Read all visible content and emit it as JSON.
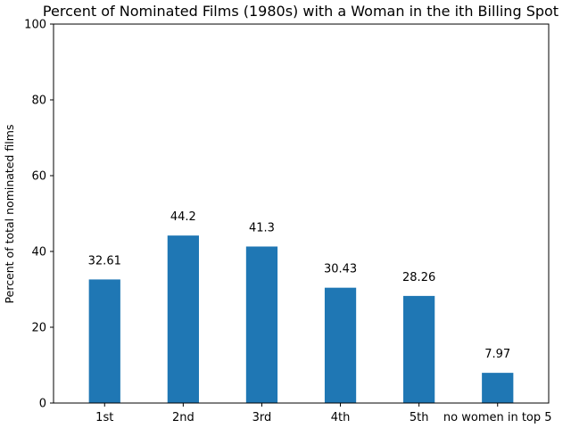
{
  "chart_data": {
    "type": "bar",
    "title": "Percent of Nominated Films (1980s) with a Woman in the ith Billing Spot",
    "xlabel": "",
    "ylabel": "Percent of total nominated films",
    "categories": [
      "1st",
      "2nd",
      "3rd",
      "4th",
      "5th",
      "no women in top 5"
    ],
    "values": [
      32.61,
      44.2,
      41.3,
      30.43,
      28.26,
      7.97
    ],
    "value_labels": [
      "32.61",
      "44.2",
      "41.3",
      "30.43",
      "28.26",
      "7.97"
    ],
    "ylim": [
      0,
      100
    ],
    "yticks": [
      0,
      20,
      40,
      60,
      80,
      100
    ],
    "grid": false,
    "legend": "none",
    "bar_color": "#1f77b4"
  }
}
